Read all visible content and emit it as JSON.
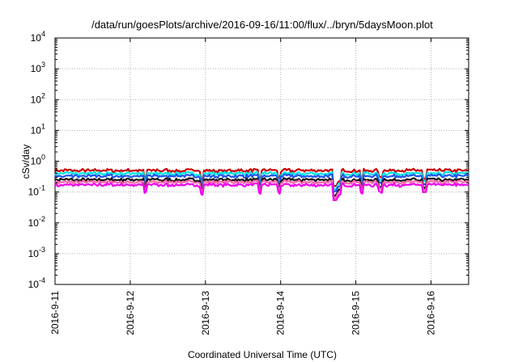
{
  "chart_data": {
    "type": "line",
    "title": "/data/run/goesPlots/archive/2016-09-16/11:00/flux/../bryn/5daysMoon.plot",
    "xlabel": "Coordinated Universal Time (UTC)",
    "ylabel": "cSv/day",
    "yscale": "log",
    "ylim": [
      0.0001,
      10000
    ],
    "y_ticks": [
      {
        "base": "10",
        "exp": "-4"
      },
      {
        "base": "10",
        "exp": "-3"
      },
      {
        "base": "10",
        "exp": "-2"
      },
      {
        "base": "10",
        "exp": "-1"
      },
      {
        "base": "10",
        "exp": "0"
      },
      {
        "base": "10",
        "exp": "1"
      },
      {
        "base": "10",
        "exp": "2"
      },
      {
        "base": "10",
        "exp": "3"
      },
      {
        "base": "10",
        "exp": "4"
      }
    ],
    "x_range": [
      "2016-09-11",
      "2016-09-16 12:00"
    ],
    "x_ticks": [
      "2016-9-11",
      "2016-9-12",
      "2016-9-13",
      "2016-9-14",
      "2016-9-15",
      "2016-9-16"
    ],
    "grid": true,
    "series": [
      {
        "color": "#cc0000",
        "base": 0.5
      },
      {
        "color": "#00e5e5",
        "base": 0.4
      },
      {
        "color": "#2255ee",
        "base": 0.33
      },
      {
        "color": "#111111",
        "base": 0.25
      },
      {
        "color": "#ff66aa",
        "base": 0.21
      },
      {
        "color": "#ee00ee",
        "base": 0.17
      }
    ],
    "dips": [
      {
        "day": 1.2,
        "factor": 0.55
      },
      {
        "day": 1.95,
        "factor": 0.5
      },
      {
        "day": 2.72,
        "factor": 0.55
      },
      {
        "day": 2.98,
        "factor": 0.55
      },
      {
        "day": 3.72,
        "factor": 0.3
      },
      {
        "day": 3.78,
        "factor": 0.45
      },
      {
        "day": 4.08,
        "factor": 0.55
      },
      {
        "day": 4.33,
        "factor": 0.6
      },
      {
        "day": 4.92,
        "factor": 0.55
      },
      {
        "day": 5.9,
        "factor": 0.5
      }
    ]
  }
}
